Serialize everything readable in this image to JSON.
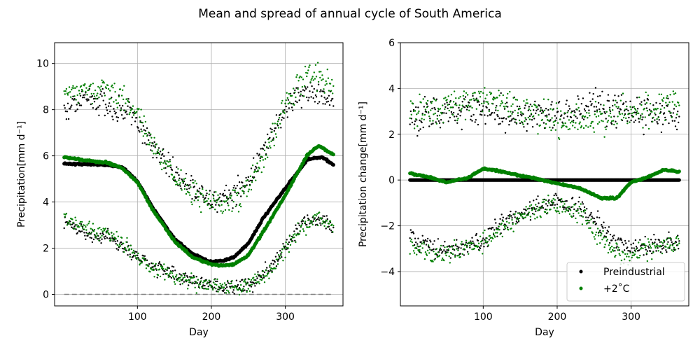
{
  "figure": {
    "title": "Mean and spread of annual cycle of South America"
  },
  "legend": {
    "location": "lower-right",
    "entries": [
      {
        "label": "Preindustrial",
        "color": "#000000"
      },
      {
        "label": "+2˚C",
        "color": "#008000"
      }
    ]
  },
  "chart_data": [
    {
      "type": "scatter",
      "xlabel": "Day",
      "ylabel": "Precipitation[mm d⁻¹]",
      "xlim": [
        -12,
        378
      ],
      "ylim": [
        -0.5,
        10.9
      ],
      "xticks": [
        100,
        200,
        300
      ],
      "yticks": [
        0,
        2,
        4,
        6,
        8,
        10
      ],
      "grid": true,
      "zero_line": {
        "y": 0,
        "style": "dashed",
        "color": "#808080"
      },
      "series": [
        {
          "name": "Preindustrial",
          "color": "#000000",
          "mean_keyframes": [
            [
              1,
              5.65
            ],
            [
              30,
              5.65
            ],
            [
              60,
              5.6
            ],
            [
              80,
              5.5
            ],
            [
              100,
              4.9
            ],
            [
              120,
              3.8
            ],
            [
              150,
              2.4
            ],
            [
              175,
              1.75
            ],
            [
              200,
              1.4
            ],
            [
              215,
              1.45
            ],
            [
              230,
              1.6
            ],
            [
              250,
              2.2
            ],
            [
              270,
              3.3
            ],
            [
              300,
              4.6
            ],
            [
              330,
              5.85
            ],
            [
              350,
              5.95
            ],
            [
              365,
              5.6
            ]
          ],
          "upper_keyframes": [
            [
              1,
              8.0
            ],
            [
              30,
              8.4
            ],
            [
              60,
              8.2
            ],
            [
              80,
              8.0
            ],
            [
              100,
              7.5
            ],
            [
              120,
              6.5
            ],
            [
              150,
              5.2
            ],
            [
              175,
              4.6
            ],
            [
              200,
              4.1
            ],
            [
              220,
              4.2
            ],
            [
              240,
              4.6
            ],
            [
              260,
              5.5
            ],
            [
              280,
              6.8
            ],
            [
              300,
              8.0
            ],
            [
              320,
              8.7
            ],
            [
              340,
              8.7
            ],
            [
              365,
              8.3
            ]
          ],
          "lower_keyframes": [
            [
              1,
              3.2
            ],
            [
              30,
              2.6
            ],
            [
              60,
              2.5
            ],
            [
              80,
              2.1
            ],
            [
              100,
              1.7
            ],
            [
              120,
              1.2
            ],
            [
              150,
              0.9
            ],
            [
              175,
              0.6
            ],
            [
              200,
              0.4
            ],
            [
              220,
              0.3
            ],
            [
              240,
              0.35
            ],
            [
              260,
              0.6
            ],
            [
              280,
              1.2
            ],
            [
              300,
              2.1
            ],
            [
              320,
              2.9
            ],
            [
              345,
              3.2
            ],
            [
              365,
              2.9
            ]
          ]
        },
        {
          "name": "+2˚C",
          "color": "#008000",
          "mean_keyframes": [
            [
              1,
              5.95
            ],
            [
              30,
              5.8
            ],
            [
              60,
              5.7
            ],
            [
              80,
              5.45
            ],
            [
              100,
              4.85
            ],
            [
              120,
              3.7
            ],
            [
              150,
              2.3
            ],
            [
              175,
              1.6
            ],
            [
              200,
              1.3
            ],
            [
              215,
              1.25
            ],
            [
              230,
              1.3
            ],
            [
              250,
              1.7
            ],
            [
              270,
              2.7
            ],
            [
              300,
              4.3
            ],
            [
              330,
              6.05
            ],
            [
              345,
              6.45
            ],
            [
              365,
              6.05
            ]
          ],
          "upper_keyframes": [
            [
              1,
              8.8
            ],
            [
              30,
              8.8
            ],
            [
              60,
              8.9
            ],
            [
              80,
              8.6
            ],
            [
              100,
              7.8
            ],
            [
              120,
              6.6
            ],
            [
              150,
              5.0
            ],
            [
              175,
              4.4
            ],
            [
              200,
              4.0
            ],
            [
              220,
              3.9
            ],
            [
              240,
              4.2
            ],
            [
              260,
              5.2
            ],
            [
              280,
              6.6
            ],
            [
              300,
              8.2
            ],
            [
              320,
              9.2
            ],
            [
              340,
              9.6
            ],
            [
              365,
              9.0
            ]
          ],
          "lower_keyframes": [
            [
              1,
              3.3
            ],
            [
              30,
              2.9
            ],
            [
              60,
              2.6
            ],
            [
              80,
              2.2
            ],
            [
              100,
              1.6
            ],
            [
              120,
              1.1
            ],
            [
              150,
              0.8
            ],
            [
              175,
              0.55
            ],
            [
              200,
              0.35
            ],
            [
              220,
              0.3
            ],
            [
              240,
              0.3
            ],
            [
              260,
              0.5
            ],
            [
              280,
              1.0
            ],
            [
              300,
              1.9
            ],
            [
              320,
              2.8
            ],
            [
              345,
              3.3
            ],
            [
              365,
              3.0
            ]
          ]
        }
      ]
    },
    {
      "type": "scatter",
      "xlabel": "Day",
      "ylabel": "Precipitation change[mm d⁻¹]",
      "xlim": [
        -12,
        378
      ],
      "ylim": [
        -5.5,
        6.0
      ],
      "xticks": [
        100,
        200,
        300
      ],
      "yticks": [
        -4,
        -2,
        0,
        2,
        4,
        6
      ],
      "grid": true,
      "series": [
        {
          "name": "Preindustrial",
          "color": "#000000",
          "mean_keyframes": [
            [
              1,
              0.0
            ],
            [
              365,
              0.0
            ]
          ],
          "upper_keyframes": [
            [
              1,
              2.7
            ],
            [
              60,
              3.0
            ],
            [
              100,
              3.1
            ],
            [
              150,
              2.9
            ],
            [
              200,
              2.8
            ],
            [
              250,
              3.3
            ],
            [
              300,
              2.9
            ],
            [
              365,
              2.7
            ]
          ],
          "lower_keyframes": [
            [
              1,
              -2.5
            ],
            [
              30,
              -2.9
            ],
            [
              60,
              -3.1
            ],
            [
              100,
              -2.6
            ],
            [
              130,
              -1.8
            ],
            [
              160,
              -1.3
            ],
            [
              200,
              -1.0
            ],
            [
              230,
              -1.2
            ],
            [
              260,
              -2.0
            ],
            [
              290,
              -3.0
            ],
            [
              320,
              -2.9
            ],
            [
              365,
              -2.6
            ]
          ]
        },
        {
          "name": "+2˚C",
          "color": "#008000",
          "mean_keyframes": [
            [
              1,
              0.3
            ],
            [
              30,
              0.1
            ],
            [
              50,
              -0.1
            ],
            [
              80,
              0.1
            ],
            [
              100,
              0.5
            ],
            [
              120,
              0.4
            ],
            [
              150,
              0.2
            ],
            [
              180,
              0.0
            ],
            [
              200,
              -0.15
            ],
            [
              230,
              -0.35
            ],
            [
              260,
              -0.8
            ],
            [
              280,
              -0.8
            ],
            [
              300,
              -0.1
            ],
            [
              320,
              0.1
            ],
            [
              345,
              0.45
            ],
            [
              365,
              0.35
            ]
          ],
          "upper_keyframes": [
            [
              1,
              3.0
            ],
            [
              60,
              3.2
            ],
            [
              100,
              3.6
            ],
            [
              150,
              3.1
            ],
            [
              200,
              2.5
            ],
            [
              250,
              2.7
            ],
            [
              300,
              3.0
            ],
            [
              365,
              3.3
            ]
          ],
          "lower_keyframes": [
            [
              1,
              -2.8
            ],
            [
              30,
              -3.3
            ],
            [
              60,
              -3.1
            ],
            [
              100,
              -2.7
            ],
            [
              130,
              -1.9
            ],
            [
              160,
              -1.4
            ],
            [
              200,
              -1.1
            ],
            [
              230,
              -1.4
            ],
            [
              260,
              -2.6
            ],
            [
              290,
              -3.4
            ],
            [
              320,
              -3.0
            ],
            [
              365,
              -2.8
            ]
          ]
        }
      ]
    }
  ]
}
